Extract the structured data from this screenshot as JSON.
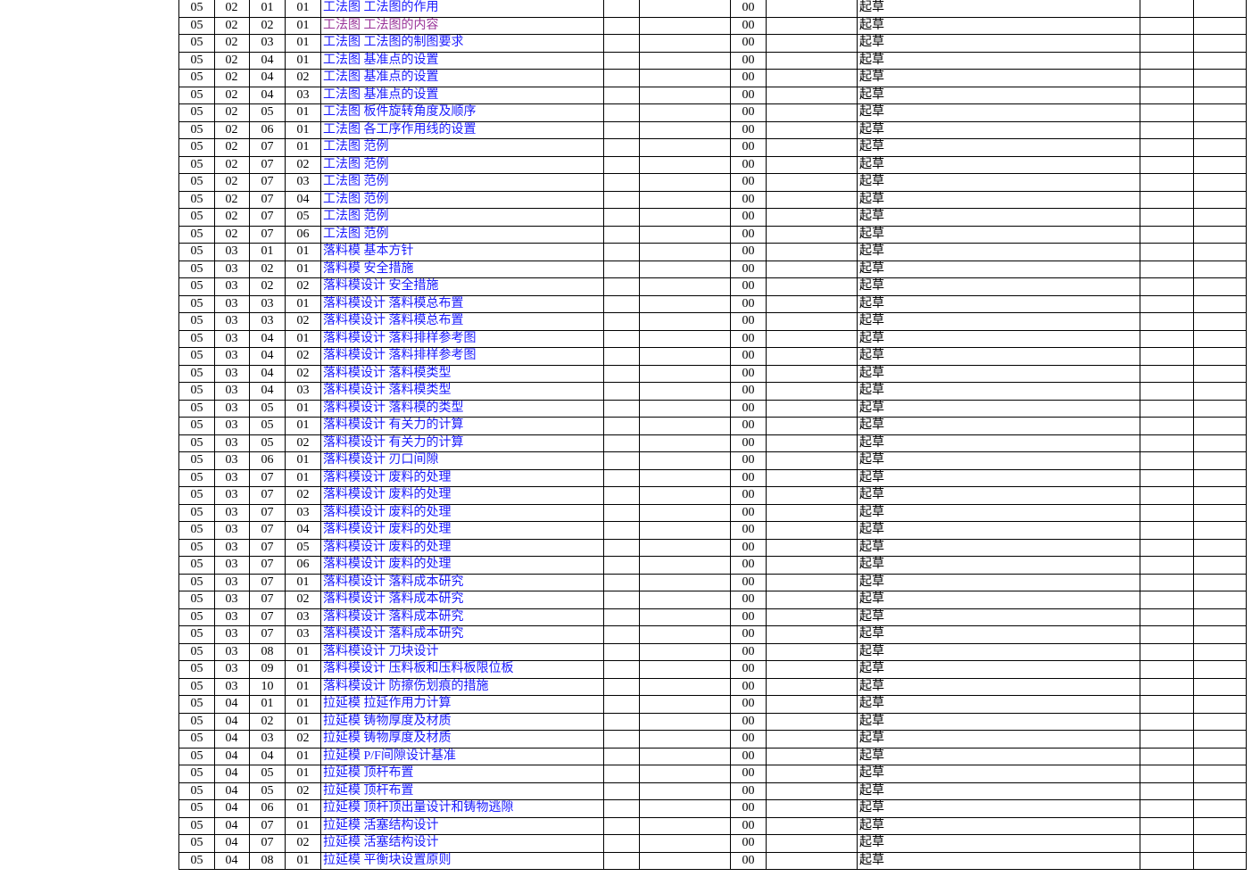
{
  "table": {
    "rows": [
      [
        "05",
        "02",
        "01",
        "01",
        "工法图 工法图的作用",
        "00",
        "起草"
      ],
      [
        "05",
        "02",
        "02",
        "01",
        "工法图 工法图的内容",
        "00",
        "起草"
      ],
      [
        "05",
        "02",
        "03",
        "01",
        "工法图 工法图的制图要求",
        "00",
        "起草"
      ],
      [
        "05",
        "02",
        "04",
        "01",
        "工法图 基准点的设置",
        "00",
        "起草"
      ],
      [
        "05",
        "02",
        "04",
        "02",
        "工法图 基准点的设置",
        "00",
        "起草"
      ],
      [
        "05",
        "02",
        "04",
        "03",
        "工法图 基准点的设置",
        "00",
        "起草"
      ],
      [
        "05",
        "02",
        "05",
        "01",
        "工法图 板件旋转角度及顺序",
        "00",
        "起草"
      ],
      [
        "05",
        "02",
        "06",
        "01",
        "工法图 各工序作用线的设置",
        "00",
        "起草"
      ],
      [
        "05",
        "02",
        "07",
        "01",
        "工法图 范例",
        "00",
        "起草"
      ],
      [
        "05",
        "02",
        "07",
        "02",
        "工法图 范例",
        "00",
        "起草"
      ],
      [
        "05",
        "02",
        "07",
        "03",
        "工法图 范例",
        "00",
        "起草"
      ],
      [
        "05",
        "02",
        "07",
        "04",
        "工法图 范例",
        "00",
        "起草"
      ],
      [
        "05",
        "02",
        "07",
        "05",
        "工法图 范例",
        "00",
        "起草"
      ],
      [
        "05",
        "02",
        "07",
        "06",
        "工法图 范例",
        "00",
        "起草"
      ],
      [
        "05",
        "03",
        "01",
        "01",
        "落料模 基本方针",
        "00",
        "起草"
      ],
      [
        "05",
        "03",
        "02",
        "01",
        "落料模 安全措施",
        "00",
        "起草"
      ],
      [
        "05",
        "03",
        "02",
        "02",
        "落料模设计 安全措施",
        "00",
        "起草"
      ],
      [
        "05",
        "03",
        "03",
        "01",
        "落料模设计 落料模总布置",
        "00",
        "起草"
      ],
      [
        "05",
        "03",
        "03",
        "02",
        "落料模设计 落料模总布置",
        "00",
        "起草"
      ],
      [
        "05",
        "03",
        "04",
        "01",
        "落料模设计 落料排样参考图",
        "00",
        "起草"
      ],
      [
        "05",
        "03",
        "04",
        "02",
        "落料模设计 落料排样参考图",
        "00",
        "起草"
      ],
      [
        "05",
        "03",
        "04",
        "02",
        "落料模设计 落料模类型",
        "00",
        "起草"
      ],
      [
        "05",
        "03",
        "04",
        "03",
        "落料模设计 落料模类型",
        "00",
        "起草"
      ],
      [
        "05",
        "03",
        "05",
        "01",
        "落料模设计 落料模的类型",
        "00",
        "起草"
      ],
      [
        "05",
        "03",
        "05",
        "01",
        "落料模设计 有关力的计算",
        "00",
        "起草"
      ],
      [
        "05",
        "03",
        "05",
        "02",
        "落料模设计 有关力的计算",
        "00",
        "起草"
      ],
      [
        "05",
        "03",
        "06",
        "01",
        "落料模设计 刃口间隙",
        "00",
        "起草"
      ],
      [
        "05",
        "03",
        "07",
        "01",
        "落料模设计 废料的处理",
        "00",
        "起草"
      ],
      [
        "05",
        "03",
        "07",
        "02",
        "落料模设计 废料的处理",
        "00",
        "起草"
      ],
      [
        "05",
        "03",
        "07",
        "03",
        "落料模设计 废料的处理",
        "00",
        "起草"
      ],
      [
        "05",
        "03",
        "07",
        "04",
        "落料模设计 废料的处理",
        "00",
        "起草"
      ],
      [
        "05",
        "03",
        "07",
        "05",
        "落料模设计 废料的处理",
        "00",
        "起草"
      ],
      [
        "05",
        "03",
        "07",
        "06",
        "落料模设计 废料的处理",
        "00",
        "起草"
      ],
      [
        "05",
        "03",
        "07",
        "01",
        "落料模设计 落料成本研究",
        "00",
        "起草"
      ],
      [
        "05",
        "03",
        "07",
        "02",
        "落料模设计 落料成本研究",
        "00",
        "起草"
      ],
      [
        "05",
        "03",
        "07",
        "03",
        "落料模设计 落料成本研究",
        "00",
        "起草"
      ],
      [
        "05",
        "03",
        "07",
        "03",
        "落料模设计 落料成本研究",
        "00",
        "起草"
      ],
      [
        "05",
        "03",
        "08",
        "01",
        "落料模设计 刀块设计",
        "00",
        "起草"
      ],
      [
        "05",
        "03",
        "09",
        "01",
        "落料模设计 压料板和压料板限位板",
        "00",
        "起草"
      ],
      [
        "05",
        "03",
        "10",
        "01",
        "落料模设计 防擦伤划痕的措施",
        "00",
        "起草"
      ],
      [
        "05",
        "04",
        "01",
        "01",
        "拉延模 拉延作用力计算",
        "00",
        "起草"
      ],
      [
        "05",
        "04",
        "02",
        "01",
        "拉延模 铸物厚度及材质",
        "00",
        "起草"
      ],
      [
        "05",
        "04",
        "03",
        "02",
        "拉延模 铸物厚度及材质",
        "00",
        "起草"
      ],
      [
        "05",
        "04",
        "04",
        "01",
        "拉延模 P/F间隙设计基准",
        "00",
        "起草"
      ],
      [
        "05",
        "04",
        "05",
        "01",
        "拉延模 顶杆布置",
        "00",
        "起草"
      ],
      [
        "05",
        "04",
        "05",
        "02",
        "拉延模 顶杆布置",
        "00",
        "起草"
      ],
      [
        "05",
        "04",
        "06",
        "01",
        "拉延模 顶杆顶出量设计和铸物逃隙",
        "00",
        "起草"
      ],
      [
        "05",
        "04",
        "07",
        "01",
        "拉延模 活塞结构设计",
        "00",
        "起草"
      ],
      [
        "05",
        "04",
        "07",
        "02",
        "拉延模 活塞结构设计",
        "00",
        "起草"
      ],
      [
        "05",
        "04",
        "08",
        "01",
        "拉延模 平衡块设置原则",
        "00",
        "起草"
      ]
    ]
  }
}
